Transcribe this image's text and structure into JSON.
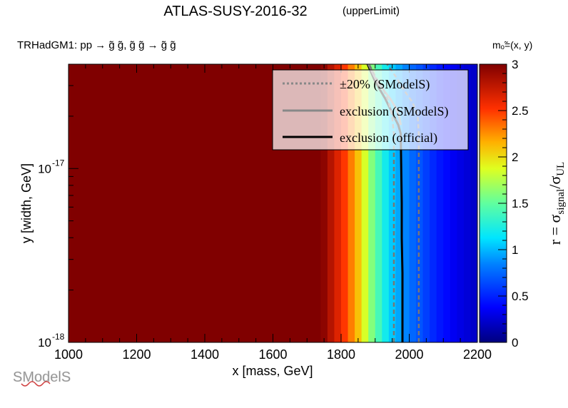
{
  "chart_data": {
    "type": "heatmap",
    "title": "ATLAS-SUSY-2016-32",
    "title_suffix": "(upperLimit)",
    "subtitle": "TRHadGM1: pp  → g̃ g̃, g̃ g̃ → g̃ g̃",
    "mass_label": "mₒ̃=(x, y)",
    "xlabel": "x [mass, GeV]",
    "ylabel": "y [width, GeV]",
    "zlabel": "r = σsignal/σUL",
    "xlim": [
      1000,
      2200
    ],
    "ylim_log10": [
      -18,
      -16.4
    ],
    "zlim": [
      0,
      3
    ],
    "x_ticks": [
      "1000",
      "1200",
      "1400",
      "1600",
      "1800",
      "2000",
      "2200"
    ],
    "y_ticks": [
      {
        "base": "10",
        "exp": "-18",
        "log10": -18
      },
      {
        "base": "10",
        "exp": "-17",
        "log10": -17
      }
    ],
    "z_ticks": [
      "0",
      "0.5",
      "1",
      "1.5",
      "2",
      "2.5",
      "3"
    ],
    "x_bins": [
      1000,
      1740,
      1760,
      1780,
      1800,
      1820,
      1840,
      1860,
      1880,
      1900,
      1920,
      1940,
      1960,
      1980,
      2000,
      2020,
      2040,
      2060,
      2080,
      2100,
      2120,
      2140,
      2160,
      2180,
      2200
    ],
    "r_values": [
      3.0,
      2.95,
      2.8,
      2.65,
      2.5,
      2.3,
      2.1,
      1.85,
      1.6,
      1.4,
      1.2,
      1.05,
      0.95,
      0.85,
      0.75,
      0.68,
      0.6,
      0.52,
      0.45,
      0.4,
      0.34,
      0.3,
      0.26,
      0.22
    ],
    "contours": [
      {
        "name": "exclusion (official)",
        "color": "#000000",
        "x": [
          1980,
          1980,
          1978,
          1978,
          1975,
          1968,
          1955,
          1930,
          1900,
          1878
        ],
        "y": [
          -18,
          -17.6,
          -17.4,
          -17.2,
          -16.8,
          -16.75,
          -16.7,
          -16.6,
          -16.5,
          -16.4
        ]
      },
      {
        "name": "exclusion (SModelS)",
        "color": "#888888",
        "x": [
          1975,
          1970,
          1960,
          1945,
          1925,
          1900,
          1880
        ],
        "y": [
          -16.75,
          -16.7,
          -16.65,
          -16.6,
          -16.55,
          -16.48,
          -16.4
        ]
      },
      {
        "name": "±20% (SModelS)",
        "color": "#777777",
        "style": "dashed",
        "x": [
          1955,
          1955,
          1950,
          1940,
          1925,
          1900,
          1882
        ],
        "y": [
          -18,
          -16.8,
          -16.7,
          -16.62,
          -16.55,
          -16.47,
          -16.4
        ]
      },
      {
        "name": "±20% (SModelS)",
        "color": "#777777",
        "style": "dashed",
        "x": [
          2028,
          2028,
          2025,
          2010,
          1985,
          1960,
          1935
        ],
        "y": [
          -18,
          -16.8,
          -16.7,
          -16.62,
          -16.55,
          -16.47,
          -16.4
        ]
      }
    ],
    "legend": {
      "placement": "top-right",
      "entries": [
        {
          "label": "±20% (SModelS)",
          "color": "#888888",
          "style": "dotted"
        },
        {
          "label": "exclusion (SModelS)",
          "color": "#888888",
          "style": "solid"
        },
        {
          "label": "exclusion (official)",
          "color": "#000000",
          "style": "solid"
        }
      ]
    },
    "grid": false
  },
  "logo": {
    "text": "SModelS"
  }
}
